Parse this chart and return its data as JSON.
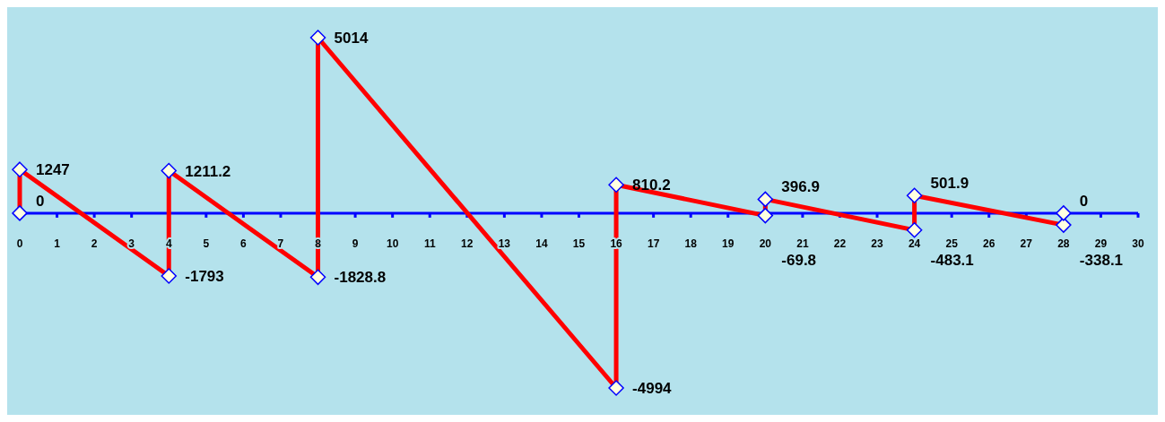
{
  "chart_data": {
    "type": "line",
    "x": [
      0,
      0,
      4,
      4,
      8,
      8,
      16,
      16,
      20,
      20,
      24,
      24,
      28,
      28
    ],
    "series": [
      {
        "color": "#ff0000",
        "values": [
          0,
          1247,
          -1793,
          1211.2,
          -1828.8,
          5014,
          -4994,
          810.2,
          -69.8,
          396.9,
          -483.1,
          501.9,
          -338.1,
          0
        ]
      }
    ],
    "xlim": [
      0,
      30
    ],
    "xticks": [
      0,
      1,
      2,
      3,
      4,
      5,
      6,
      7,
      8,
      9,
      10,
      11,
      12,
      13,
      14,
      15,
      16,
      17,
      18,
      19,
      20,
      21,
      22,
      23,
      24,
      25,
      26,
      27,
      28,
      29,
      30
    ],
    "tick_labels": "x",
    "marker": "diamond",
    "line_style": "solid",
    "data_labels": true
  }
}
